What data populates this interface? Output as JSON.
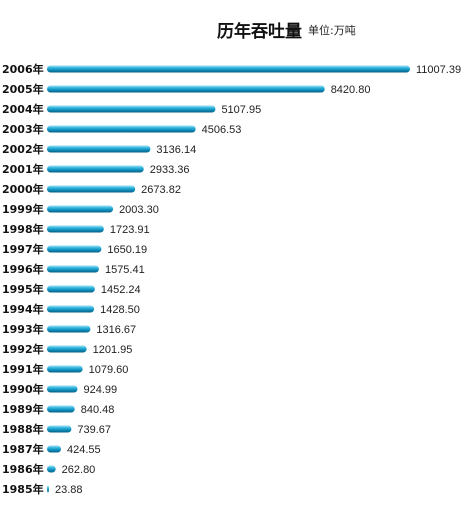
{
  "title": "历年吞吐量",
  "unit": "单位:万吨",
  "chart_data": {
    "type": "bar",
    "orientation": "horizontal",
    "title": "历年吞吐量",
    "unit": "单位:万吨",
    "categories": [
      "2006年",
      "2005年",
      "2004年",
      "2003年",
      "2002年",
      "2001年",
      "2000年",
      "1999年",
      "1998年",
      "1997年",
      "1996年",
      "1995年",
      "1994年",
      "1993年",
      "1992年",
      "1991年",
      "1990年",
      "1989年",
      "1988年",
      "1987年",
      "1986年",
      "1985年"
    ],
    "values": [
      11007.39,
      8420.8,
      5107.95,
      4506.53,
      3136.14,
      2933.36,
      2673.82,
      2003.3,
      1723.91,
      1650.19,
      1575.41,
      1452.24,
      1428.5,
      1316.67,
      1201.95,
      1079.6,
      924.99,
      840.48,
      739.67,
      424.55,
      262.8,
      23.88
    ],
    "value_labels": [
      "11007.39",
      "8420.80",
      "5107.95",
      "4506.53",
      "3136.14",
      "2933.36",
      "2673.82",
      "2003.30",
      "1723.91",
      "1650.19",
      "1575.41",
      "1452.24",
      "1428.50",
      "1316.67",
      "1201.95",
      "1079.60",
      "924.99",
      "840.48",
      "739.67",
      "424.55",
      "262.80",
      "23.88"
    ],
    "bar_color": "#1a9fd0",
    "grid": false,
    "legend": "none"
  }
}
